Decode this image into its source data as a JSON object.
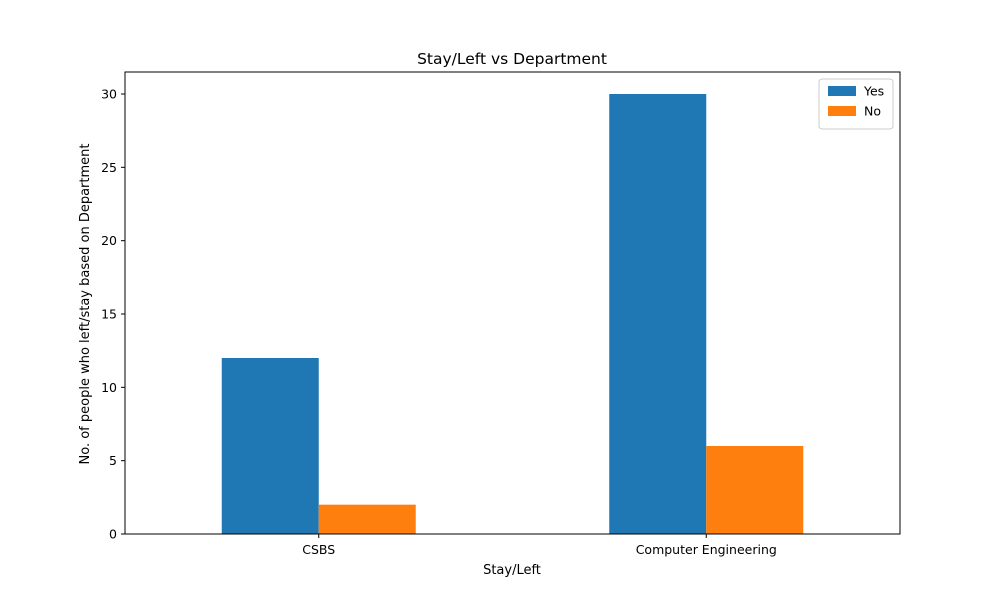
{
  "chart_data": {
    "type": "bar",
    "title": "Stay/Left vs Department",
    "xlabel": "Stay/Left",
    "ylabel": "No. of people who left/stay based on Department",
    "categories": [
      "CSBS",
      "Computer Engineering"
    ],
    "series": [
      {
        "name": "Yes",
        "values": [
          12,
          30
        ],
        "color": "#1f77b4"
      },
      {
        "name": "No",
        "values": [
          2,
          6
        ],
        "color": "#ff7f0e"
      }
    ],
    "ylim": [
      0,
      31.5
    ],
    "yticks": [
      0,
      5,
      10,
      15,
      20,
      25,
      30
    ],
    "grid": false,
    "legend": {
      "position": "top-right"
    }
  }
}
